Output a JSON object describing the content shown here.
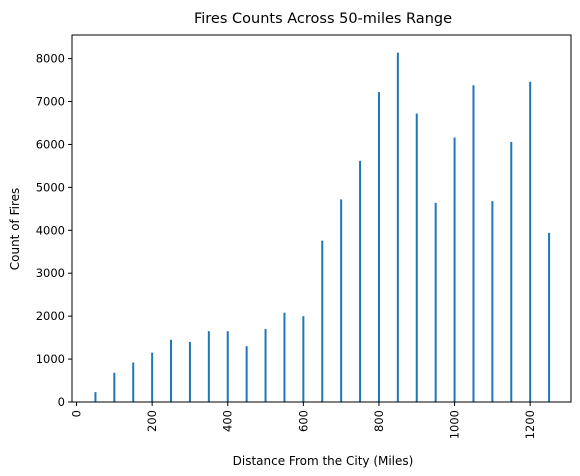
{
  "chart_data": {
    "type": "bar",
    "title": "Fires Counts Across 50-miles Range",
    "xlabel": "Distance From the City (Miles)",
    "ylabel": "Count of Fires",
    "xlim": [
      -12,
      1308
    ],
    "ylim": [
      0,
      8550
    ],
    "xticks": [
      0,
      200,
      400,
      600,
      800,
      1000,
      1200
    ],
    "yticks": [
      0,
      1000,
      2000,
      3000,
      4000,
      5000,
      6000,
      7000,
      8000
    ],
    "grid": false,
    "bar_color": "#1f77b4",
    "series": [
      {
        "x": [
          50,
          100,
          150,
          200,
          250,
          300,
          350,
          400,
          450,
          500,
          550,
          600,
          650,
          700,
          750,
          800,
          850,
          900,
          950,
          1000,
          1050,
          1100,
          1150,
          1200,
          1250
        ],
        "values": [
          230,
          680,
          920,
          1150,
          1450,
          1400,
          1650,
          1650,
          1300,
          1700,
          2080,
          2000,
          3760,
          4720,
          5620,
          7220,
          8140,
          6720,
          4640,
          6160,
          7380,
          4680,
          6060,
          7460,
          3940
        ]
      }
    ]
  }
}
